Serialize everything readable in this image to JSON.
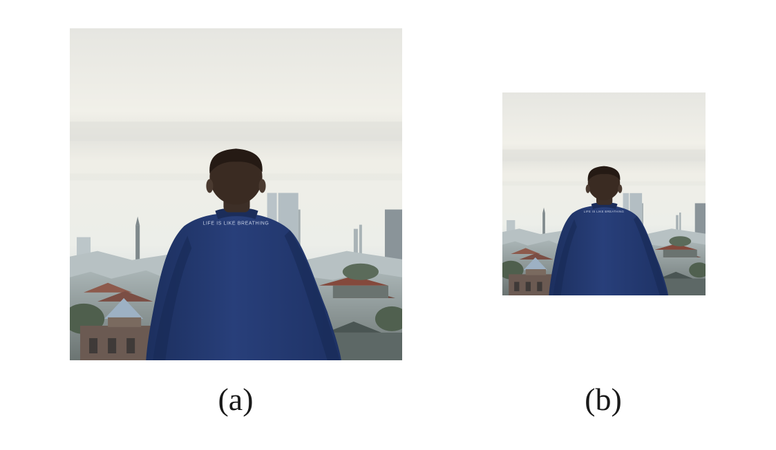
{
  "figure": {
    "panel_a": {
      "caption": "(a)",
      "shirt_text": "LIFE IS LIKE BREATHING"
    },
    "panel_b": {
      "caption": "(b)",
      "shirt_text": "LIFE IS LIKE BREATHING"
    }
  },
  "colors": {
    "sky_top": "#e7e7e3",
    "sky_mid": "#f2f1ea",
    "haze": "#e2e5e3",
    "city_far": "#b8c2c6",
    "city_near": "#6e7a7c",
    "roof_red": "#8a4a3c",
    "jacket": "#233a73",
    "hair": "#2a1f1a",
    "skin": "#4a3a30"
  }
}
